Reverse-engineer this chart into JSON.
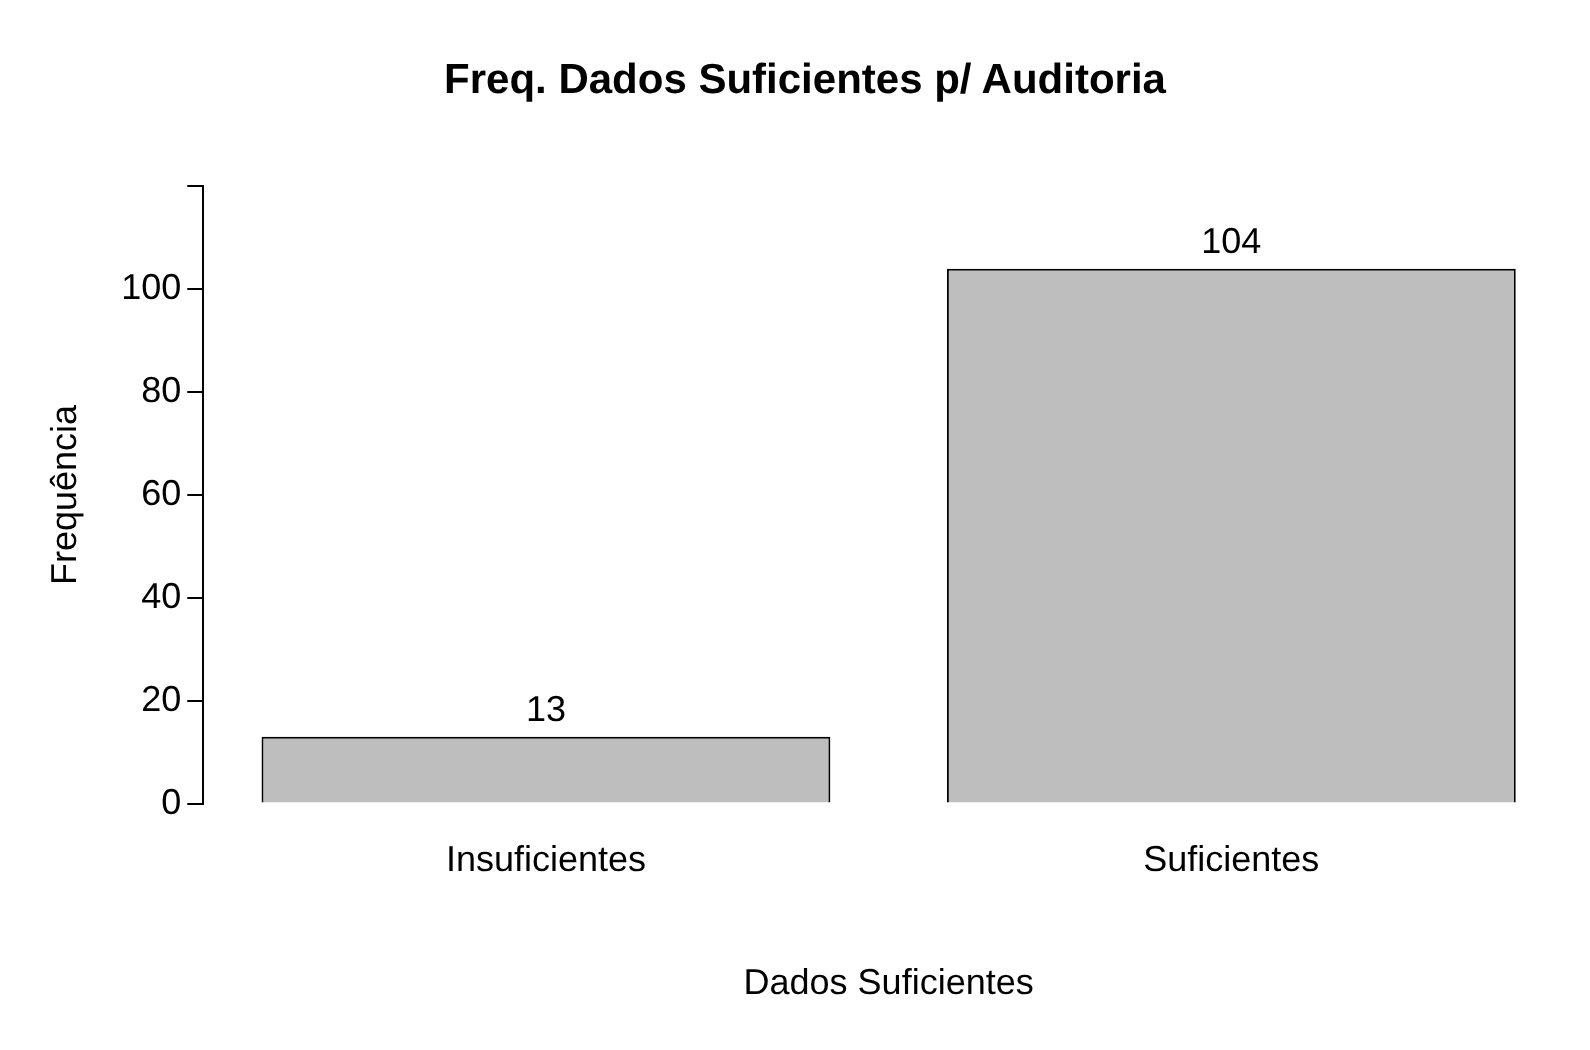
{
  "chart_data": {
    "type": "bar",
    "title": "Freq. Dados Suficientes p/ Auditoria",
    "xlabel": "Dados Suficientes",
    "ylabel": "Frequência",
    "categories": [
      "Insuficientes",
      "Suficientes"
    ],
    "values": [
      13,
      104
    ],
    "color": "#bebebe",
    "ylim": [
      0,
      120
    ],
    "yticks": [
      0,
      20,
      40,
      60,
      80,
      100,
      {
        "value": 120,
        "label": null
      }
    ],
    "grid": false,
    "legend": false,
    "data_labels": true
  }
}
